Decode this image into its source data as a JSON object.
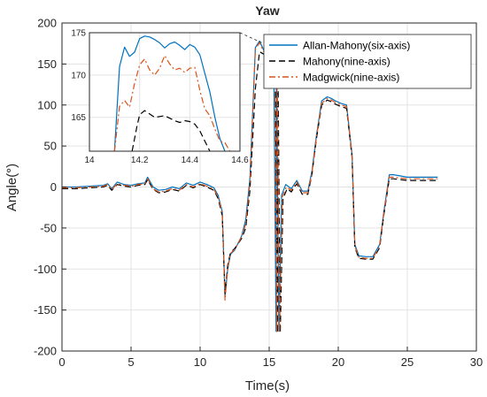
{
  "chart_data": {
    "type": "line",
    "title": "Yaw",
    "xlabel": "Time(s)",
    "ylabel": "Angle(°)",
    "xlim": [
      0,
      30
    ],
    "ylim": [
      -200,
      200
    ],
    "xticks": [
      0,
      5,
      10,
      15,
      20,
      25,
      30
    ],
    "yticks": [
      -200,
      -150,
      -100,
      -50,
      0,
      50,
      100,
      150,
      200
    ],
    "grid": true,
    "legend_position": "top-right",
    "series": [
      {
        "name": "Allan-Mahony(six-axis)",
        "color": "#0072BD",
        "dash": "solid",
        "x": [
          0,
          1,
          2,
          3,
          3.3,
          3.6,
          4,
          4.5,
          5,
          5.5,
          6,
          6.2,
          6.6,
          7,
          7.5,
          8,
          8.5,
          9,
          9.5,
          10,
          10.5,
          11,
          11.3,
          11.6,
          11.8,
          12,
          12.2,
          12.5,
          13,
          13.3,
          13.6,
          14,
          14.3,
          14.6,
          15,
          15.2,
          15.3,
          15.32,
          15.5,
          15.52,
          15.7,
          15.9,
          16.2,
          16.6,
          17,
          17.4,
          17.8,
          18.1,
          18.4,
          18.8,
          19.2,
          19.5,
          19.8,
          20.2,
          20.6,
          21,
          21.2,
          21.5,
          22,
          22.5,
          23,
          23.3,
          23.7,
          24,
          25,
          26,
          27.2
        ],
        "y": [
          0,
          0,
          1,
          2,
          4,
          -2,
          6,
          3,
          2,
          4,
          5,
          12,
          0,
          -4,
          -3,
          0,
          -2,
          5,
          2,
          6,
          3,
          -1,
          -10,
          -30,
          -133,
          -100,
          -82,
          -77,
          -60,
          -40,
          10,
          170,
          178,
          167,
          175,
          170,
          180,
          180,
          -176,
          180,
          -176,
          -10,
          3,
          -2,
          8,
          -5,
          -5,
          20,
          60,
          105,
          110,
          108,
          105,
          102,
          100,
          40,
          -70,
          -84,
          -85,
          -85,
          -70,
          -30,
          15,
          15,
          12,
          12,
          12
        ]
      },
      {
        "name": "Mahony(nine-axis)",
        "color": "#000000",
        "dash": "dashed",
        "x": [
          0,
          1,
          2,
          3,
          3.3,
          3.6,
          4,
          4.5,
          5,
          5.5,
          6,
          6.2,
          6.6,
          7,
          7.5,
          8,
          8.5,
          9,
          9.5,
          10,
          10.5,
          11,
          11.3,
          11.6,
          11.8,
          12,
          12.2,
          12.5,
          13,
          13.3,
          13.6,
          14,
          14.3,
          14.6,
          15,
          15.2,
          15.4,
          15.42,
          15.6,
          15.62,
          15.8,
          16,
          16.3,
          16.6,
          17,
          17.4,
          17.8,
          18.1,
          18.4,
          18.8,
          19.2,
          19.5,
          19.8,
          20.2,
          20.6,
          21,
          21.2,
          21.5,
          22,
          22.5,
          23,
          23.3,
          23.7,
          24,
          25,
          26,
          27.2
        ],
        "y": [
          -2,
          -2,
          -1,
          0,
          2,
          -4,
          3,
          1,
          0,
          2,
          3,
          9,
          -3,
          -7,
          -6,
          -3,
          -5,
          2,
          -1,
          3,
          0,
          -4,
          -14,
          -35,
          -130,
          -95,
          -80,
          -75,
          -63,
          -50,
          -5,
          120,
          165,
          162,
          172,
          168,
          178,
          178,
          -178,
          178,
          -178,
          -14,
          -2,
          -6,
          4,
          -9,
          -9,
          16,
          56,
          100,
          106,
          104,
          101,
          98,
          96,
          36,
          -74,
          -87,
          -88,
          -88,
          -74,
          -34,
          10,
          10,
          8,
          8,
          8
        ]
      },
      {
        "name": "Madgwick(nine-axis)",
        "color": "#D95319",
        "dash": "dashdot",
        "x": [
          0,
          1,
          2,
          3,
          3.3,
          3.6,
          4,
          4.5,
          5,
          5.5,
          6,
          6.2,
          6.6,
          7,
          7.5,
          8,
          8.5,
          9,
          9.5,
          10,
          10.5,
          11,
          11.3,
          11.6,
          11.8,
          12,
          12.2,
          12.5,
          13,
          13.3,
          13.6,
          14,
          14.3,
          14.6,
          15,
          15.2,
          15.35,
          15.37,
          15.55,
          15.57,
          15.75,
          15.95,
          16.25,
          16.6,
          17,
          17.4,
          17.8,
          18.1,
          18.4,
          18.8,
          19.2,
          19.5,
          19.8,
          20.2,
          20.6,
          21,
          21.2,
          21.5,
          22,
          22.5,
          23,
          23.3,
          23.7,
          24,
          25,
          26,
          27.2
        ],
        "y": [
          -1,
          -1,
          0,
          1,
          3,
          -3,
          4,
          2,
          1,
          3,
          4,
          10,
          -2,
          -6,
          -5,
          -2,
          -4,
          3,
          0,
          4,
          1,
          -3,
          -12,
          -32,
          -138,
          -98,
          -81,
          -76,
          -61,
          -45,
          5,
          168,
          176,
          165,
          174,
          169,
          179,
          179,
          -177,
          179,
          -177,
          -12,
          0,
          -4,
          6,
          -7,
          -7,
          18,
          58,
          102,
          108,
          106,
          103,
          100,
          98,
          38,
          -72,
          -86,
          -87,
          -87,
          -72,
          -32,
          12,
          12,
          10,
          10,
          10
        ]
      }
    ],
    "inset": {
      "xlim": [
        14,
        14.6
      ],
      "ylim": [
        161,
        175
      ],
      "xticks": [
        14,
        14.2,
        14.4,
        14.6
      ],
      "yticks": [
        165,
        170,
        175
      ],
      "grid": true,
      "series": [
        {
          "name": "Allan-Mahony(six-axis)",
          "x": [
            14.1,
            14.12,
            14.14,
            14.16,
            14.18,
            14.2,
            14.22,
            14.24,
            14.26,
            14.28,
            14.3,
            14.32,
            14.34,
            14.36,
            14.38,
            14.4,
            14.42,
            14.44,
            14.46,
            14.48,
            14.5,
            14.52,
            14.54
          ],
          "y": [
            161,
            171,
            173.3,
            172.2,
            172.7,
            174.3,
            174.6,
            174.5,
            174.2,
            173.8,
            173.2,
            173.7,
            173.9,
            173.5,
            173,
            173.6,
            173.3,
            172.4,
            170.2,
            168,
            165,
            162.5,
            161
          ]
        },
        {
          "name": "Mahony(nine-axis)",
          "x": [
            14.17,
            14.18,
            14.19,
            14.2,
            14.22,
            14.24,
            14.26,
            14.28,
            14.3,
            14.32,
            14.34,
            14.36,
            14.38,
            14.4,
            14.42,
            14.44,
            14.46,
            14.48
          ],
          "y": [
            161,
            162.5,
            164,
            165.3,
            165.8,
            165.4,
            165,
            165.1,
            165.2,
            164.9,
            164.6,
            164.4,
            164.6,
            164.5,
            164.2,
            163.4,
            162.2,
            161
          ]
        },
        {
          "name": "Madgwick(nine-axis)",
          "x": [
            14.1,
            14.12,
            14.14,
            14.16,
            14.18,
            14.2,
            14.22,
            14.24,
            14.26,
            14.28,
            14.3,
            14.32,
            14.34,
            14.36,
            14.38,
            14.4,
            14.42,
            14.44,
            14.46,
            14.48,
            14.5,
            14.52,
            14.54,
            14.56
          ],
          "y": [
            161,
            166.3,
            167,
            166.2,
            169,
            171.2,
            171.9,
            170.6,
            170,
            170.8,
            172.3,
            171.3,
            170.6,
            170.8,
            170.3,
            170.8,
            170.9,
            168.2,
            166,
            165.2,
            163.6,
            162.2,
            162,
            161
          ]
        }
      ]
    }
  }
}
